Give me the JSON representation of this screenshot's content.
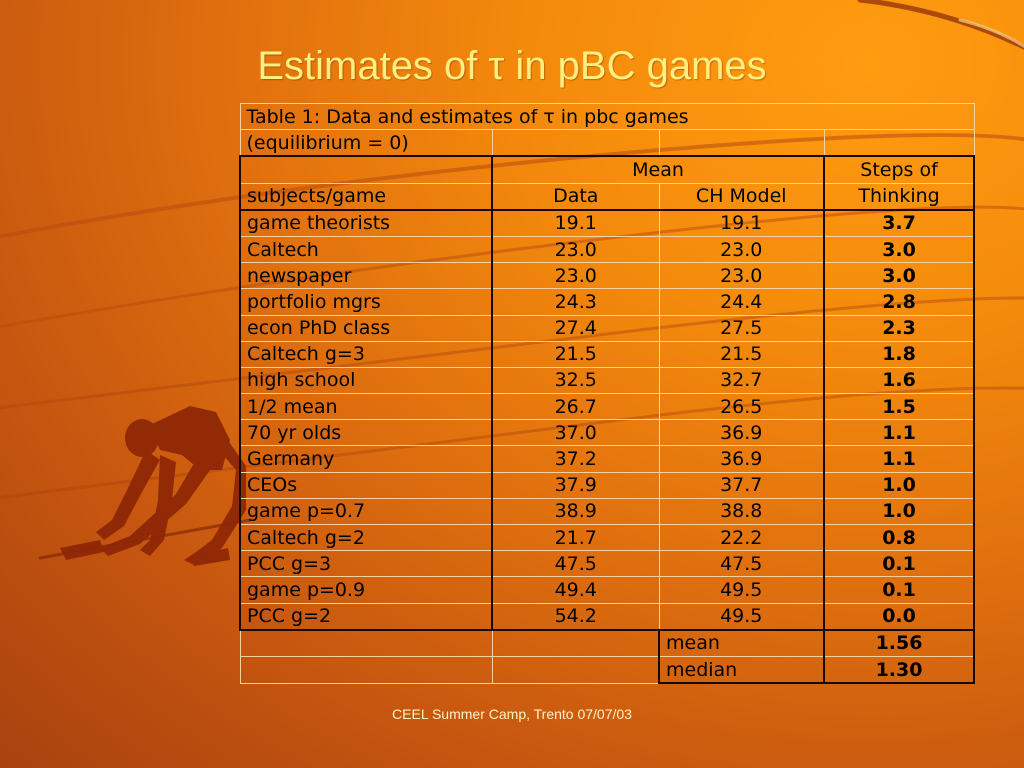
{
  "slide": {
    "title": "Estimates of τ in pBC games",
    "footer": "CEEL Summer Camp, Trento 07/07/03"
  },
  "table": {
    "caption_line1": "Table 1: Data and estimates of τ in pbc games",
    "caption_line2": "(equilibrium = 0)",
    "header_mean": "Mean",
    "header_steps": "Steps of",
    "header_subjects": "subjects/game",
    "header_data": "Data",
    "header_ch": "CH Model",
    "header_thinking": "Thinking",
    "rows": [
      {
        "subject": "game theorists",
        "data": "19.1",
        "ch": "19.1",
        "steps": "3.7"
      },
      {
        "subject": "Caltech",
        "data": "23.0",
        "ch": "23.0",
        "steps": "3.0"
      },
      {
        "subject": "newspaper",
        "data": "23.0",
        "ch": "23.0",
        "steps": "3.0"
      },
      {
        "subject": "portfolio mgrs",
        "data": "24.3",
        "ch": "24.4",
        "steps": "2.8"
      },
      {
        "subject": "econ PhD class",
        "data": "27.4",
        "ch": "27.5",
        "steps": "2.3"
      },
      {
        "subject": "Caltech g=3",
        "data": "21.5",
        "ch": "21.5",
        "steps": "1.8"
      },
      {
        "subject": "high school",
        "data": "32.5",
        "ch": "32.7",
        "steps": "1.6"
      },
      {
        "subject": "1/2 mean",
        "data": "26.7",
        "ch": "26.5",
        "steps": "1.5"
      },
      {
        "subject": "70 yr olds",
        "data": "37.0",
        "ch": "36.9",
        "steps": "1.1"
      },
      {
        "subject": "Germany",
        "data": "37.2",
        "ch": "36.9",
        "steps": "1.1"
      },
      {
        "subject": "CEOs",
        "data": "37.9",
        "ch": "37.7",
        "steps": "1.0"
      },
      {
        "subject": "game p=0.7",
        "data": "38.9",
        "ch": "38.8",
        "steps": "1.0"
      },
      {
        "subject": "Caltech g=2",
        "data": "21.7",
        "ch": "22.2",
        "steps": "0.8"
      },
      {
        "subject": "PCC g=3",
        "data": "47.5",
        "ch": "47.5",
        "steps": "0.1"
      },
      {
        "subject": "game p=0.9",
        "data": "49.4",
        "ch": "49.5",
        "steps": "0.1"
      },
      {
        "subject": "PCC g=2",
        "data": "54.2",
        "ch": "49.5",
        "steps": "0.0"
      }
    ],
    "summary": [
      {
        "label": "mean",
        "value": "1.56"
      },
      {
        "label": "median",
        "value": "1.30"
      }
    ]
  },
  "colors": {
    "title": "#ffee80",
    "background_light": "#ff9c10",
    "background_dark": "#a8420f",
    "figure": "#8e2606",
    "rule_border": "#1a0800"
  }
}
